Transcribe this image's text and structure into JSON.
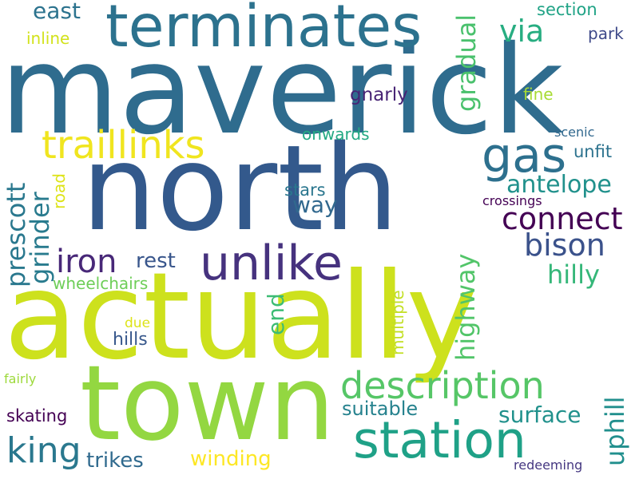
{
  "words": [
    {
      "text": "maverick",
      "color": "#2f6c8e",
      "vertical": false
    },
    {
      "text": "north",
      "color": "#33598c",
      "vertical": false
    },
    {
      "text": "actually",
      "color": "#cde11d",
      "vertical": false
    },
    {
      "text": "town",
      "color": "#93d741",
      "vertical": false
    },
    {
      "text": "terminates",
      "color": "#2c728e",
      "vertical": false
    },
    {
      "text": "station",
      "color": "#1fa187",
      "vertical": false
    },
    {
      "text": "unlike",
      "color": "#46327e",
      "vertical": false
    },
    {
      "text": "traillinks",
      "color": "#f0e51f",
      "vertical": false
    },
    {
      "text": "gas",
      "color": "#2d708e",
      "vertical": false
    },
    {
      "text": "description",
      "color": "#56c667",
      "vertical": false
    },
    {
      "text": "connect",
      "color": "#440154",
      "vertical": false
    },
    {
      "text": "bison",
      "color": "#3b528b",
      "vertical": false
    },
    {
      "text": "iron",
      "color": "#482878",
      "vertical": false
    },
    {
      "text": "king",
      "color": "#2a788e",
      "vertical": false
    },
    {
      "text": "via",
      "color": "#27ad81",
      "vertical": false
    },
    {
      "text": "antelope",
      "color": "#21918c",
      "vertical": false
    },
    {
      "text": "hilly",
      "color": "#35b779",
      "vertical": false
    },
    {
      "text": "prescott",
      "color": "#2a788e",
      "vertical": true
    },
    {
      "text": "grinder",
      "color": "#297b8e",
      "vertical": true
    },
    {
      "text": "gradual",
      "color": "#4ac16d",
      "vertical": true
    },
    {
      "text": "highway",
      "color": "#52c569",
      "vertical": true
    },
    {
      "text": "uphill",
      "color": "#218f8d",
      "vertical": true
    },
    {
      "text": "surface",
      "color": "#21918c",
      "vertical": false
    },
    {
      "text": "suitable",
      "color": "#26828e",
      "vertical": false
    },
    {
      "text": "winding",
      "color": "#fde725",
      "vertical": false
    },
    {
      "text": "trikes",
      "color": "#306a8e",
      "vertical": false
    },
    {
      "text": "skating",
      "color": "#440154",
      "vertical": false
    },
    {
      "text": "rest",
      "color": "#39568c",
      "vertical": false
    },
    {
      "text": "way",
      "color": "#31688e",
      "vertical": false
    },
    {
      "text": "end",
      "color": "#3dbc74",
      "vertical": true
    },
    {
      "text": "east",
      "color": "#2c738e",
      "vertical": false
    },
    {
      "text": "wheelchairs",
      "color": "#6ece58",
      "vertical": false
    },
    {
      "text": "hills",
      "color": "#38588c",
      "vertical": false
    },
    {
      "text": "gnarly",
      "color": "#482475",
      "vertical": false
    },
    {
      "text": "unfit",
      "color": "#2c728e",
      "vertical": false
    },
    {
      "text": "stars",
      "color": "#2a768e",
      "vertical": false
    },
    {
      "text": "onwards",
      "color": "#23a983",
      "vertical": false
    },
    {
      "text": "section",
      "color": "#20a386",
      "vertical": false
    },
    {
      "text": "park",
      "color": "#3e4989",
      "vertical": false
    },
    {
      "text": "fine",
      "color": "#a8db34",
      "vertical": false
    },
    {
      "text": "inline",
      "color": "#d2e21b",
      "vertical": false
    },
    {
      "text": "road",
      "color": "#dde318",
      "vertical": true
    },
    {
      "text": "multiple",
      "color": "#c2df23",
      "vertical": true
    },
    {
      "text": "due",
      "color": "#dde318",
      "vertical": false
    },
    {
      "text": "crossings",
      "color": "#440154",
      "vertical": false
    },
    {
      "text": "scenic",
      "color": "#31688e",
      "vertical": false
    },
    {
      "text": "fairly",
      "color": "#9dd93b",
      "vertical": false
    },
    {
      "text": "redeeming",
      "color": "#453781",
      "vertical": false
    }
  ]
}
